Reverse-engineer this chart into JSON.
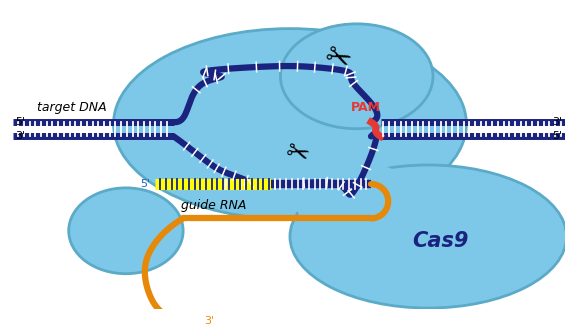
{
  "bg_color": "#ffffff",
  "light_blue": "#7dc8e8",
  "light_blue2": "#a8daf0",
  "dark_blue": "#1a237e",
  "blue_edge": "#5aaac8",
  "red_color": "#e53935",
  "yellow_color": "#ffff00",
  "orange_color": "#e6890a",
  "white": "#ffffff",
  "black": "#000000",
  "figsize": [
    5.78,
    3.24
  ],
  "dpi": 100,
  "labels": {
    "target_dna": "target DNA",
    "five_prime_left": "5'",
    "three_prime_left": "3'",
    "three_prime_right": "3'",
    "five_prime_right": "5'",
    "five_prime_grna": "5'",
    "three_prime_tail": "3'",
    "pam": "PAM",
    "guide_rna": "guide RNA",
    "cas9": "Cas9"
  }
}
